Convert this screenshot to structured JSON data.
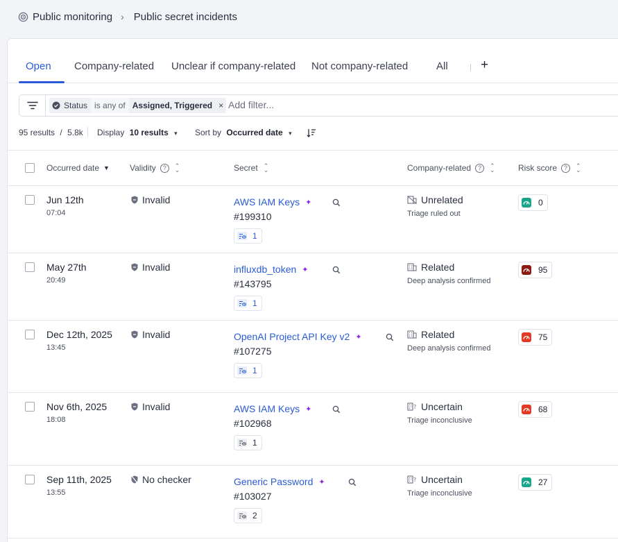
{
  "breadcrumb": {
    "parent": "Public monitoring",
    "separator": "›",
    "current": "Public secret incidents"
  },
  "tabs": [
    {
      "label": "Open",
      "active": true
    },
    {
      "label": "Company-related",
      "active": false
    },
    {
      "label": "Unclear if company-related",
      "active": false
    },
    {
      "label": "Not company-related",
      "active": false
    },
    {
      "label": "All",
      "active": false
    }
  ],
  "tab_add": "+",
  "filter": {
    "field": "Status",
    "operator": "is any of",
    "value": "Assigned, Triggered",
    "remove": "×",
    "add_placeholder": "Add filter..."
  },
  "results": {
    "count": "95 results",
    "divider": "/",
    "total": "5.8k",
    "display_label": "Display",
    "display_value": "10 results",
    "sort_label": "Sort by",
    "sort_value": "Occurred date"
  },
  "columns": {
    "occurred": "Occurred date",
    "validity": "Validity",
    "secret": "Secret",
    "company": "Company-related",
    "risk": "Risk score"
  },
  "colors": {
    "accent": "#2a5bd7",
    "risk_low": "#17a58b",
    "risk_critical": "#8b1a12",
    "risk_high": "#e03a24"
  },
  "rows": [
    {
      "date": "Jun 12th",
      "time": "07:04",
      "validity": "Invalid",
      "validity_icon": "shield-icon",
      "secret": "AWS IAM Keys",
      "id": "#199310",
      "occurrences": "1",
      "occ_icon": "eye-list-icon",
      "company": "Unrelated",
      "company_icon": "building-off-icon",
      "company_sub": "Triage ruled out",
      "risk": "0",
      "risk_level": "low"
    },
    {
      "date": "May 27th",
      "time": "20:49",
      "validity": "Invalid",
      "validity_icon": "shield-icon",
      "secret": "influxdb_token",
      "id": "#143795",
      "occurrences": "1",
      "occ_icon": "eye-list-icon",
      "company": "Related",
      "company_icon": "building-icon",
      "company_sub": "Deep analysis confirmed",
      "risk": "95",
      "risk_level": "critical"
    },
    {
      "date": "Dec 12th, 2025",
      "time": "13:45",
      "validity": "Invalid",
      "validity_icon": "shield-icon",
      "secret": "OpenAI Project API Key v2",
      "id": "#107275",
      "occurrences": "1",
      "occ_icon": "eye-list-icon",
      "company": "Related",
      "company_icon": "building-icon",
      "company_sub": "Deep analysis confirmed",
      "risk": "75",
      "risk_level": "high"
    },
    {
      "date": "Nov 6th, 2025",
      "time": "18:08",
      "validity": "Invalid",
      "validity_icon": "shield-icon",
      "secret": "AWS IAM Keys",
      "id": "#102968",
      "occurrences": "1",
      "occ_icon": "eye-list-icon",
      "company": "Uncertain",
      "company_icon": "building-question-icon",
      "company_sub": "Triage inconclusive",
      "risk": "68",
      "risk_level": "high"
    },
    {
      "date": "Sep 11th, 2025",
      "time": "13:55",
      "validity": "No checker",
      "validity_icon": "shield-off-icon",
      "secret": "Generic Password",
      "id": "#103027",
      "occurrences": "2",
      "occ_icon": "eye-list-icon",
      "company": "Uncertain",
      "company_icon": "building-question-icon",
      "company_sub": "Triage inconclusive",
      "risk": "27",
      "risk_level": "low"
    }
  ]
}
